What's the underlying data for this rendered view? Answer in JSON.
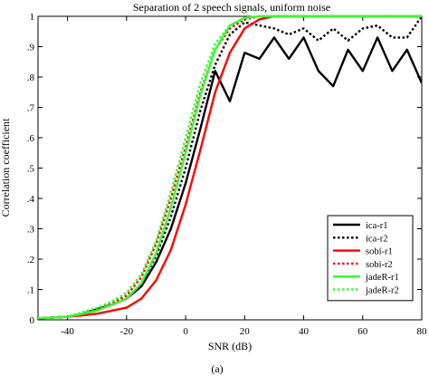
{
  "chart_data": {
    "type": "line",
    "title": "Separation of 2 speech signals, uniform noise",
    "xlabel": "SNR (dB)",
    "ylabel": "Correlation coefficient",
    "caption": "(a)",
    "xlim": [
      -50,
      80
    ],
    "ylim": [
      0,
      1
    ],
    "xticks": [
      -40,
      -20,
      0,
      20,
      40,
      60,
      80
    ],
    "yticks": [
      0,
      0.1,
      0.2,
      0.3,
      0.4,
      0.5,
      0.6,
      0.7,
      0.8,
      0.9,
      1
    ],
    "grid": false,
    "legend_position": "bottom-right",
    "series": [
      {
        "name": "ica-r1",
        "color": "#000000",
        "dash": "solid",
        "x": [
          -50,
          -40,
          -35,
          -30,
          -25,
          -20,
          -15,
          -10,
          -5,
          0,
          5,
          10,
          15,
          20,
          25,
          30,
          35,
          40,
          45,
          50,
          55,
          60,
          65,
          70,
          75,
          80
        ],
        "y": [
          0.005,
          0.01,
          0.02,
          0.035,
          0.05,
          0.07,
          0.11,
          0.19,
          0.3,
          0.45,
          0.63,
          0.82,
          0.72,
          0.88,
          0.86,
          0.93,
          0.86,
          0.93,
          0.82,
          0.77,
          0.89,
          0.82,
          0.93,
          0.82,
          0.89,
          0.78
        ]
      },
      {
        "name": "ica-r2",
        "color": "#000000",
        "dash": "dot",
        "x": [
          -50,
          -40,
          -35,
          -30,
          -25,
          -20,
          -15,
          -10,
          -5,
          0,
          5,
          10,
          15,
          20,
          25,
          30,
          35,
          40,
          45,
          50,
          55,
          60,
          65,
          70,
          75,
          80
        ],
        "y": [
          0.005,
          0.01,
          0.02,
          0.035,
          0.05,
          0.07,
          0.12,
          0.21,
          0.34,
          0.5,
          0.69,
          0.84,
          0.94,
          0.98,
          0.97,
          0.96,
          0.94,
          0.96,
          0.92,
          0.96,
          0.92,
          0.96,
          0.97,
          0.93,
          0.93,
          1.0
        ]
      },
      {
        "name": "sobi-r1",
        "color": "#ff0000",
        "dash": "solid",
        "x": [
          -50,
          -40,
          -35,
          -30,
          -25,
          -20,
          -15,
          -10,
          -5,
          0,
          5,
          10,
          15,
          20,
          25,
          30,
          35,
          40,
          45,
          50,
          55,
          60,
          65,
          70,
          75,
          80
        ],
        "y": [
          0.005,
          0.01,
          0.015,
          0.02,
          0.03,
          0.04,
          0.07,
          0.13,
          0.23,
          0.38,
          0.56,
          0.75,
          0.88,
          0.96,
          0.99,
          1.0,
          1.0,
          1.0,
          1.0,
          1.0,
          1.0,
          1.0,
          1.0,
          1.0,
          1.0,
          1.0
        ]
      },
      {
        "name": "sobi-r2",
        "color": "#ff0000",
        "dash": "dot",
        "x": [
          -50,
          -40,
          -35,
          -30,
          -25,
          -20,
          -15,
          -10,
          -5,
          0,
          5,
          10,
          15,
          20,
          25,
          30,
          35,
          40,
          45,
          50,
          55,
          60,
          65,
          70,
          75,
          80
        ],
        "y": [
          0.005,
          0.01,
          0.02,
          0.035,
          0.055,
          0.08,
          0.14,
          0.25,
          0.4,
          0.57,
          0.75,
          0.89,
          0.96,
          0.99,
          1.0,
          1.0,
          1.0,
          1.0,
          1.0,
          1.0,
          1.0,
          1.0,
          1.0,
          1.0,
          1.0,
          1.0
        ]
      },
      {
        "name": "jadeR-r1",
        "color": "#33ff33",
        "dash": "solid",
        "x": [
          -50,
          -40,
          -35,
          -30,
          -25,
          -20,
          -15,
          -10,
          -5,
          0,
          5,
          10,
          15,
          20,
          25,
          30,
          35,
          40,
          45,
          50,
          55,
          60,
          65,
          70,
          75,
          80
        ],
        "y": [
          0.005,
          0.01,
          0.02,
          0.03,
          0.05,
          0.07,
          0.12,
          0.22,
          0.37,
          0.55,
          0.74,
          0.89,
          0.97,
          0.995,
          1.0,
          1.0,
          1.0,
          1.0,
          1.0,
          1.0,
          1.0,
          1.0,
          1.0,
          1.0,
          1.0,
          1.0
        ]
      },
      {
        "name": "jadeR-r2",
        "color": "#33ff33",
        "dash": "dot",
        "x": [
          -50,
          -40,
          -35,
          -30,
          -25,
          -20,
          -15,
          -10,
          -5,
          0,
          5,
          10,
          15,
          20,
          25,
          30,
          35,
          40,
          45,
          50,
          55,
          60,
          65,
          70,
          75,
          80
        ],
        "y": [
          0.005,
          0.01,
          0.025,
          0.04,
          0.06,
          0.09,
          0.15,
          0.26,
          0.42,
          0.6,
          0.78,
          0.91,
          0.97,
          0.995,
          1.0,
          1.0,
          1.0,
          1.0,
          1.0,
          1.0,
          1.0,
          1.0,
          1.0,
          1.0,
          1.0,
          1.0
        ]
      }
    ]
  }
}
